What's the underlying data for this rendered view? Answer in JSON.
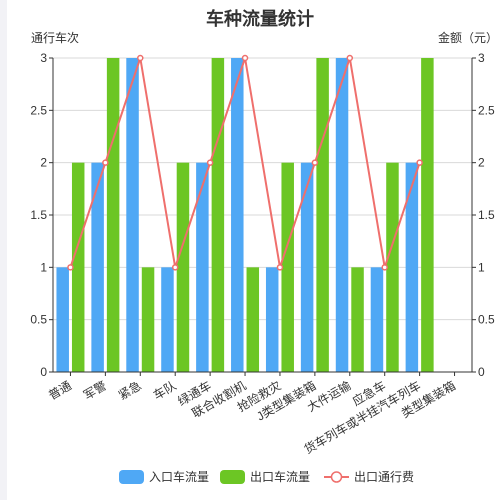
{
  "chart_data": {
    "type": "bar",
    "title": "车种流量统计",
    "ylabel_left": "通行车次",
    "ylabel_right": "金额（元）",
    "ylim_left": [
      0,
      3
    ],
    "ylim_right": [
      0,
      3
    ],
    "yticks": [
      "0",
      "0.5",
      "1",
      "1.5",
      "2",
      "2.5",
      "3"
    ],
    "categories": [
      "普通",
      "军警",
      "紧急",
      "车队",
      "绿通车",
      "联合收割机",
      "抢险救灾",
      "J类型集装箱",
      "大件运输",
      "应急车",
      "货车列车或半挂汽车列车",
      "类型集装箱"
    ],
    "category_lines": [
      [
        "普通"
      ],
      [
        "军警"
      ],
      [
        "紧急"
      ],
      [
        "车队"
      ],
      [
        "绿通车"
      ],
      [
        "联合收割机"
      ],
      [
        "抢险救灾"
      ],
      [
        "J类型集装箱"
      ],
      [
        "大件运输"
      ],
      [
        "应急车"
      ],
      [
        "货车列车或半挂汽车列车"
      ],
      [
        "类型集装箱"
      ]
    ],
    "series": [
      {
        "name": "入口车流量",
        "type": "bar",
        "color": "#4fa8f5",
        "values": [
          1,
          2,
          3,
          1,
          2,
          3,
          1,
          2,
          3,
          1,
          2,
          null
        ]
      },
      {
        "name": "出口车流量",
        "type": "bar",
        "color": "#6cc624",
        "values": [
          2,
          3,
          1,
          2,
          3,
          1,
          2,
          3,
          1,
          2,
          3,
          null
        ]
      },
      {
        "name": "出口通行费",
        "type": "line",
        "color": "#ef6f6c",
        "values": [
          1,
          2,
          3,
          1,
          2,
          3,
          1,
          2,
          3,
          1,
          2,
          null
        ]
      }
    ],
    "grid": true,
    "legend": "bottom"
  }
}
